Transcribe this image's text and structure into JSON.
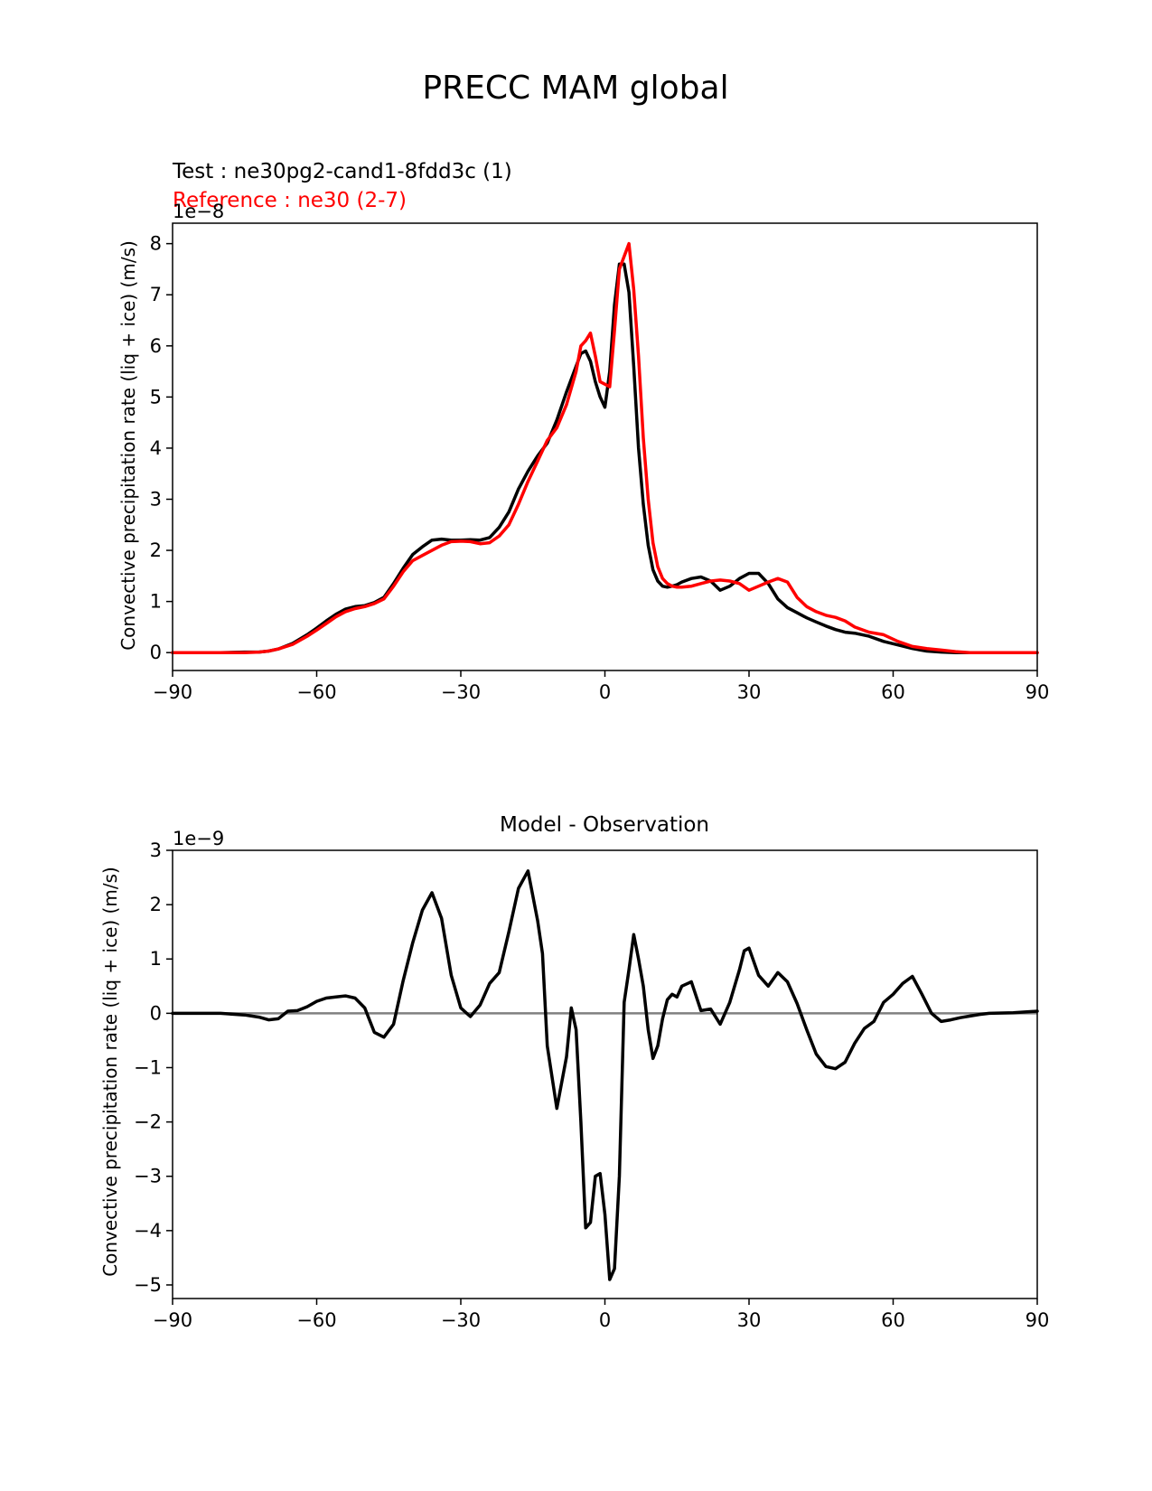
{
  "figure_title": "PRECC MAM global",
  "chart_data": [
    {
      "type": "line",
      "id": "top",
      "title": "",
      "legend_texts": [
        {
          "text": "Test : ne30pg2-cand1-8fdd3c (1)",
          "color": "#000000"
        },
        {
          "text": "Reference : ne30 (2-7)",
          "color": "#ff0000"
        }
      ],
      "xlabel": "",
      "ylabel": "Convective precipitation rate (liq + ice) (m/s)",
      "offset_text": "1e−8",
      "xlim": [
        -90,
        90
      ],
      "ylim": [
        -0.35,
        8.4
      ],
      "xticks": [
        -90,
        -60,
        -30,
        0,
        30,
        60,
        90
      ],
      "xtick_labels": [
        "−90",
        "−60",
        "−30",
        "0",
        "30",
        "60",
        "90"
      ],
      "yticks": [
        0,
        1,
        2,
        3,
        4,
        5,
        6,
        7,
        8
      ],
      "ytick_labels": [
        "0",
        "1",
        "2",
        "3",
        "4",
        "5",
        "6",
        "7",
        "8"
      ],
      "series": [
        {
          "name": "Test",
          "color": "#000000",
          "x": [
            -90,
            -80,
            -75,
            -72,
            -70,
            -68,
            -65,
            -62,
            -60,
            -58,
            -56,
            -54,
            -52,
            -50,
            -48,
            -46,
            -44,
            -42,
            -40,
            -38,
            -36,
            -34,
            -32,
            -30,
            -28,
            -26,
            -24,
            -22,
            -20,
            -18,
            -16,
            -14,
            -12,
            -10,
            -8,
            -6,
            -5,
            -4,
            -3,
            -2,
            -1,
            0,
            1,
            2,
            3,
            4,
            5,
            6,
            7,
            8,
            9,
            10,
            11,
            12,
            13,
            14,
            15,
            16,
            18,
            20,
            22,
            24,
            26,
            28,
            30,
            32,
            34,
            36,
            38,
            40,
            42,
            44,
            46,
            48,
            50,
            52,
            55,
            58,
            61,
            64,
            67,
            70,
            73,
            76,
            80,
            85,
            90
          ],
          "y": [
            0,
            0,
            0.01,
            0.01,
            0.03,
            0.07,
            0.18,
            0.35,
            0.48,
            0.62,
            0.75,
            0.85,
            0.9,
            0.92,
            0.98,
            1.08,
            1.35,
            1.65,
            1.92,
            2.07,
            2.2,
            2.22,
            2.2,
            2.2,
            2.21,
            2.2,
            2.25,
            2.45,
            2.75,
            3.2,
            3.55,
            3.85,
            4.1,
            4.55,
            5.1,
            5.6,
            5.85,
            5.9,
            5.7,
            5.3,
            5.0,
            4.8,
            5.5,
            6.8,
            7.6,
            7.6,
            7.05,
            5.6,
            4.0,
            2.9,
            2.1,
            1.62,
            1.4,
            1.3,
            1.28,
            1.3,
            1.33,
            1.38,
            1.45,
            1.48,
            1.4,
            1.22,
            1.3,
            1.45,
            1.55,
            1.55,
            1.35,
            1.05,
            0.88,
            0.78,
            0.68,
            0.6,
            0.52,
            0.45,
            0.4,
            0.38,
            0.32,
            0.22,
            0.15,
            0.08,
            0.03,
            0.01,
            0,
            0,
            0,
            0,
            0
          ]
        },
        {
          "name": "Reference",
          "color": "#ff0000",
          "x": [
            -90,
            -80,
            -75,
            -72,
            -70,
            -68,
            -65,
            -62,
            -60,
            -58,
            -56,
            -54,
            -52,
            -50,
            -48,
            -46,
            -44,
            -42,
            -40,
            -38,
            -36,
            -34,
            -32,
            -30,
            -28,
            -26,
            -24,
            -22,
            -20,
            -18,
            -16,
            -14,
            -12,
            -10,
            -8,
            -6,
            -5,
            -4,
            -3,
            -2,
            -1,
            0,
            1,
            2,
            3,
            4,
            5,
            6,
            7,
            8,
            9,
            10,
            11,
            12,
            13,
            14,
            15,
            16,
            18,
            20,
            22,
            24,
            26,
            28,
            30,
            32,
            34,
            36,
            38,
            40,
            42,
            44,
            46,
            48,
            50,
            52,
            55,
            58,
            61,
            64,
            67,
            70,
            73,
            76,
            80,
            85,
            90
          ],
          "y": [
            0,
            0,
            0,
            0.01,
            0.03,
            0.07,
            0.16,
            0.32,
            0.44,
            0.57,
            0.7,
            0.8,
            0.86,
            0.9,
            0.96,
            1.05,
            1.3,
            1.58,
            1.8,
            1.9,
            2.0,
            2.1,
            2.17,
            2.18,
            2.17,
            2.13,
            2.15,
            2.28,
            2.5,
            2.9,
            3.35,
            3.75,
            4.15,
            4.4,
            4.85,
            5.5,
            6.0,
            6.1,
            6.25,
            5.8,
            5.3,
            5.25,
            5.2,
            6.3,
            7.5,
            7.75,
            8.0,
            7.1,
            5.8,
            4.2,
            3.0,
            2.15,
            1.68,
            1.45,
            1.35,
            1.3,
            1.28,
            1.28,
            1.3,
            1.35,
            1.4,
            1.42,
            1.4,
            1.35,
            1.22,
            1.3,
            1.38,
            1.45,
            1.38,
            1.08,
            0.9,
            0.8,
            0.73,
            0.69,
            0.62,
            0.5,
            0.4,
            0.35,
            0.22,
            0.12,
            0.08,
            0.05,
            0.02,
            0,
            0,
            0,
            0
          ]
        }
      ]
    },
    {
      "type": "line",
      "id": "bottom",
      "title": "Model - Observation",
      "xlabel": "",
      "ylabel": "Convective precipitation rate (liq + ice) (m/s)",
      "offset_text": "1e−9",
      "xlim": [
        -90,
        90
      ],
      "ylim": [
        -5.25,
        3
      ],
      "xticks": [
        -90,
        -60,
        -30,
        0,
        30,
        60,
        90
      ],
      "xtick_labels": [
        "−90",
        "−60",
        "−30",
        "0",
        "30",
        "60",
        "90"
      ],
      "yticks": [
        -5,
        -4,
        -3,
        -2,
        -1,
        0,
        1,
        2,
        3
      ],
      "ytick_labels": [
        "−5",
        "−4",
        "−3",
        "−2",
        "−1",
        "0",
        "1",
        "2",
        "3"
      ],
      "zero_line_color": "#808080",
      "series": [
        {
          "name": "Model - Observation",
          "color": "#000000",
          "x": [
            -90,
            -80,
            -75,
            -72,
            -70,
            -68,
            -66,
            -64,
            -62,
            -60,
            -58,
            -56,
            -54,
            -52,
            -50,
            -48,
            -46,
            -44,
            -42,
            -40,
            -38,
            -36,
            -34,
            -32,
            -30,
            -28,
            -26,
            -24,
            -22,
            -20,
            -18,
            -16,
            -14,
            -13,
            -12,
            -10,
            -8,
            -7,
            -6,
            -5,
            -4,
            -3,
            -2,
            -1,
            0,
            1,
            2,
            3,
            4,
            5,
            6,
            7,
            8,
            9,
            10,
            11,
            12,
            13,
            14,
            15,
            16,
            18,
            20,
            22,
            24,
            26,
            28,
            29,
            30,
            32,
            34,
            36,
            38,
            40,
            42,
            44,
            46,
            48,
            50,
            52,
            54,
            56,
            58,
            60,
            62,
            64,
            66,
            68,
            70,
            72,
            74,
            76,
            78,
            80,
            85,
            90
          ],
          "y": [
            0,
            0,
            -0.03,
            -0.07,
            -0.12,
            -0.1,
            0.04,
            0.05,
            0.12,
            0.22,
            0.28,
            0.3,
            0.32,
            0.28,
            0.1,
            -0.35,
            -0.44,
            -0.2,
            0.6,
            1.3,
            1.9,
            2.22,
            1.75,
            0.7,
            0.1,
            -0.06,
            0.15,
            0.55,
            0.75,
            1.5,
            2.3,
            2.62,
            1.7,
            1.1,
            -0.6,
            -1.75,
            -0.8,
            0.1,
            -0.3,
            -2.0,
            -3.95,
            -3.85,
            -3.0,
            -2.95,
            -3.7,
            -4.9,
            -4.7,
            -3.0,
            0.2,
            0.8,
            1.45,
            1.0,
            0.5,
            -0.3,
            -0.83,
            -0.6,
            -0.1,
            0.25,
            0.35,
            0.3,
            0.5,
            0.58,
            0.05,
            0.08,
            -0.2,
            0.2,
            0.8,
            1.15,
            1.2,
            0.7,
            0.5,
            0.75,
            0.58,
            0.18,
            -0.3,
            -0.75,
            -0.98,
            -1.02,
            -0.9,
            -0.55,
            -0.28,
            -0.15,
            0.2,
            0.35,
            0.55,
            0.68,
            0.35,
            0.0,
            -0.15,
            -0.12,
            -0.08,
            -0.05,
            -0.02,
            0,
            0.01,
            0.04
          ]
        }
      ]
    }
  ]
}
